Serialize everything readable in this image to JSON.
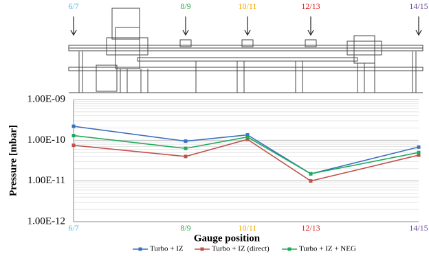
{
  "chart_data": {
    "type": "line",
    "categories": [
      "6/7",
      "8/9",
      "10/11",
      "12/13",
      "14/15"
    ],
    "label_colors": [
      "#4db8e8",
      "#2aa84a",
      "#f0a800",
      "#e02020",
      "#6a4c9c"
    ],
    "series": [
      {
        "name": "Turbo + IZ",
        "color": "#3a6fbf",
        "values": [
          2.2e-10,
          9.5e-11,
          1.35e-10,
          1.5e-11,
          6.8e-11
        ]
      },
      {
        "name": "Turbo + IZ (direct)",
        "color": "#c0504d",
        "values": [
          7.5e-11,
          4e-11,
          1.05e-10,
          1e-11,
          4.3e-11
        ]
      },
      {
        "name": "Turbo + IZ + NEG",
        "color": "#1faa5a",
        "values": [
          1.3e-10,
          6.3e-11,
          1.2e-10,
          1.5e-11,
          5e-11
        ]
      }
    ],
    "ylim": [
      1e-12,
      1e-09
    ],
    "log_y": true,
    "grid": true,
    "yticks": [
      {
        "value": 1e-12,
        "label": "1.00E-12"
      },
      {
        "value": 1e-11,
        "label": "1.00E-11"
      },
      {
        "value": 1e-10,
        "label": "1.00E-10"
      },
      {
        "value": 1e-09,
        "label": "1.00E-09"
      }
    ],
    "xlabel": "Gauge position",
    "ylabel": "Pressure [mbar]",
    "legend": "bottom"
  }
}
